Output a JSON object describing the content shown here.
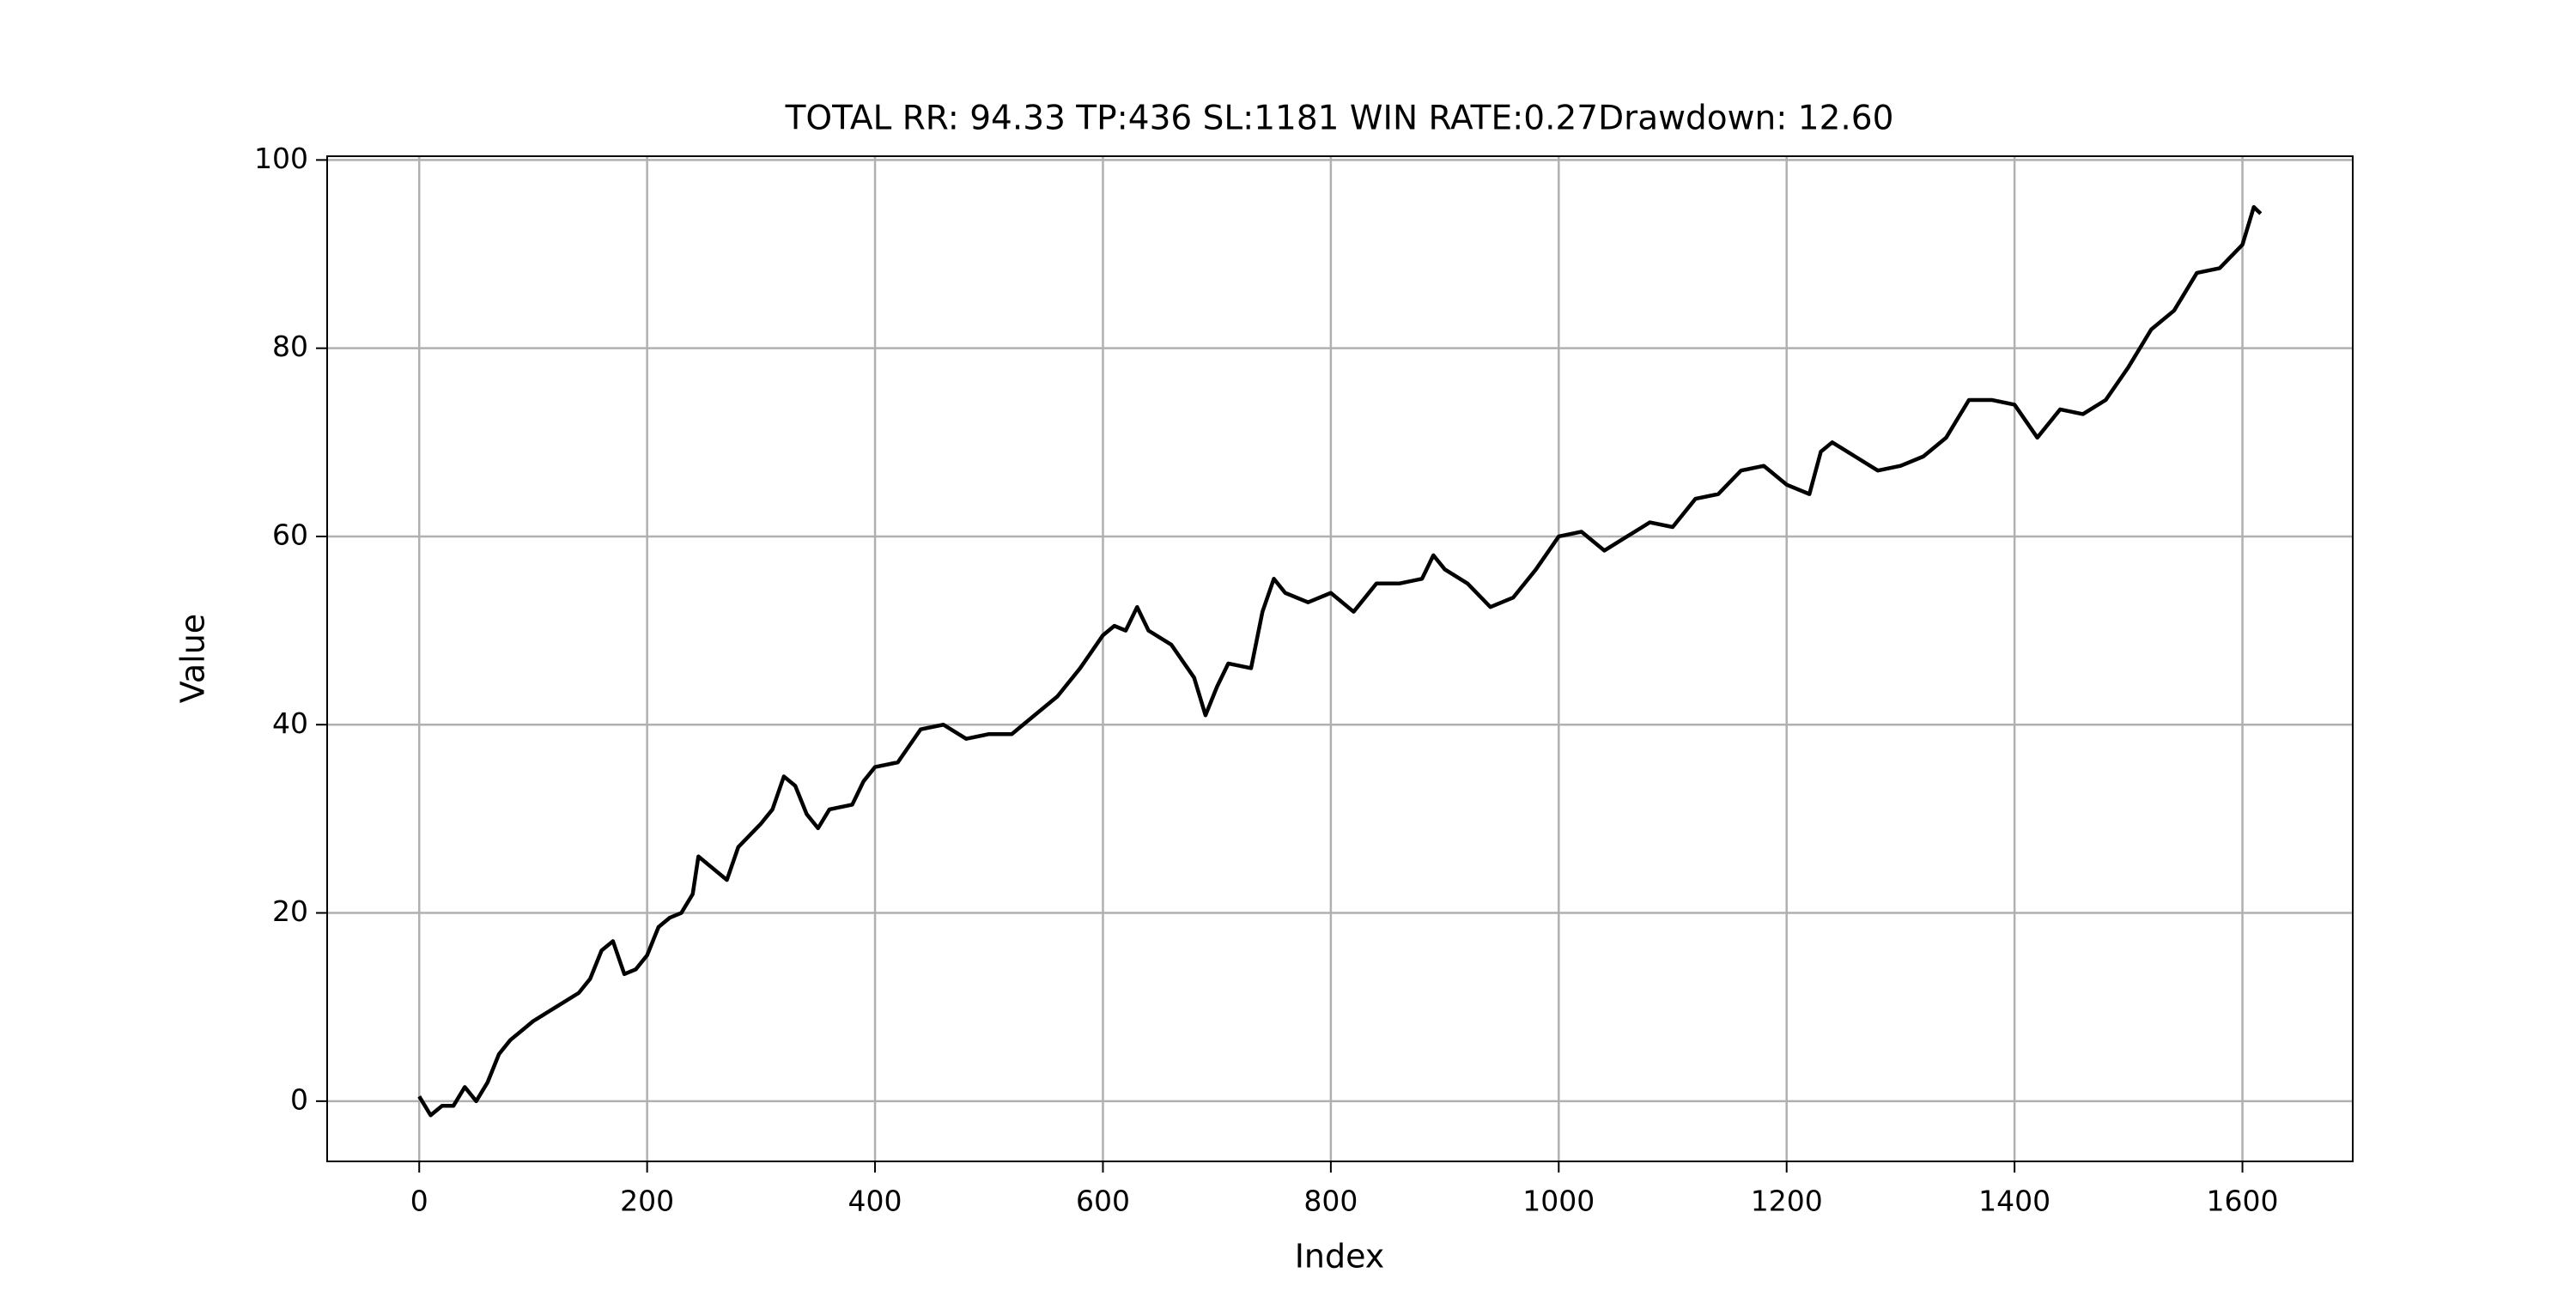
{
  "chart_data": {
    "type": "line",
    "title": "TOTAL RR: 94.33 TP:436 SL:1181 WIN RATE:0.27Drawdown: 12.60",
    "x_label": "Index",
    "y_label": "Value",
    "x": [
      0,
      10,
      20,
      30,
      40,
      50,
      60,
      70,
      80,
      90,
      100,
      120,
      140,
      150,
      160,
      170,
      180,
      190,
      200,
      210,
      220,
      230,
      240,
      245,
      260,
      270,
      280,
      300,
      310,
      320,
      330,
      340,
      350,
      360,
      380,
      390,
      400,
      420,
      440,
      460,
      480,
      500,
      520,
      540,
      560,
      580,
      600,
      610,
      620,
      630,
      640,
      660,
      680,
      690,
      700,
      710,
      730,
      740,
      750,
      760,
      780,
      800,
      820,
      840,
      860,
      880,
      890,
      900,
      920,
      940,
      960,
      980,
      1000,
      1020,
      1040,
      1060,
      1080,
      1100,
      1120,
      1140,
      1160,
      1180,
      1200,
      1220,
      1230,
      1240,
      1260,
      1280,
      1300,
      1320,
      1340,
      1360,
      1380,
      1400,
      1420,
      1440,
      1460,
      1480,
      1500,
      1520,
      1540,
      1560,
      1580,
      1600,
      1610,
      1616
    ],
    "series": [
      {
        "name": "Value",
        "color": "#000000",
        "values": [
          0.5,
          -1.5,
          -0.5,
          -0.5,
          1.5,
          0,
          2,
          5,
          6.5,
          7.5,
          8.5,
          10,
          11.5,
          13,
          16,
          17,
          13.5,
          14,
          15.5,
          18.5,
          19.5,
          20,
          22,
          26,
          24.5,
          23.5,
          27,
          29.5,
          31,
          34.5,
          33.5,
          30.5,
          29,
          31,
          31.5,
          34,
          35.5,
          36,
          39.5,
          40,
          38.5,
          39,
          39,
          41,
          43,
          46,
          49.5,
          50.5,
          50,
          52.5,
          50,
          48.5,
          45,
          41,
          44,
          46.5,
          46,
          52,
          55.5,
          54,
          53,
          54,
          52,
          55,
          55,
          55.5,
          58,
          56.5,
          55,
          52.5,
          53.5,
          56.5,
          60,
          60.5,
          58.5,
          60,
          61.5,
          61,
          64,
          64.5,
          67,
          67.5,
          65.5,
          64.5,
          69,
          70,
          68.5,
          67,
          67.5,
          68.5,
          70.5,
          74.5,
          74.5,
          74,
          70.5,
          73.5,
          73,
          74.5,
          78,
          82,
          84,
          88,
          88.5,
          91,
          95,
          94.3
        ]
      }
    ],
    "xlim": [
      -80.8,
      1696.8
    ],
    "ylim": [
      -6.4,
      100.4
    ],
    "xticks": [
      0,
      200,
      400,
      600,
      800,
      1000,
      1200,
      1400,
      1600
    ],
    "yticks": [
      0,
      20,
      40,
      60,
      80,
      100
    ],
    "grid": true
  }
}
